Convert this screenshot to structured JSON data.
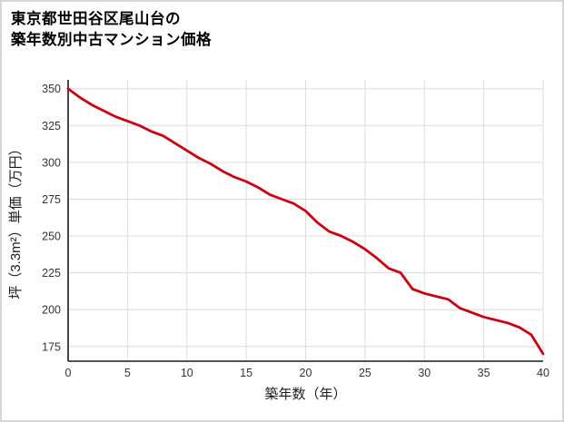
{
  "page": {
    "background": "#ffffff",
    "border_color": "#d6d6d6"
  },
  "title": {
    "line1": "東京都世田谷区尾山台の",
    "line2": "築年数別中古マンション価格"
  },
  "chart_data": {
    "type": "line",
    "title": "東京都世田谷区尾山台の築年数別中古マンション価格",
    "xlabel": "築年数（年）",
    "ylabel": "坪（3.3m²）単価（万円）",
    "x": [
      0,
      1,
      2,
      3,
      4,
      5,
      6,
      7,
      8,
      9,
      10,
      11,
      12,
      13,
      14,
      15,
      16,
      17,
      18,
      19,
      20,
      21,
      22,
      23,
      24,
      25,
      26,
      27,
      28,
      29,
      30,
      31,
      32,
      33,
      34,
      35,
      36,
      37,
      38,
      39,
      40
    ],
    "y": [
      350,
      344,
      339,
      335,
      331,
      328,
      325,
      321,
      318,
      313,
      308,
      303,
      299,
      294,
      290,
      287,
      283,
      278,
      275,
      272,
      267,
      259,
      253,
      250,
      246,
      241,
      235,
      228,
      225,
      214,
      211,
      209,
      207,
      201,
      198,
      195,
      193,
      191,
      188,
      183,
      170
    ],
    "xlim": [
      0,
      40
    ],
    "ylim": [
      165,
      356
    ],
    "xticks": [
      0,
      5,
      10,
      15,
      20,
      25,
      30,
      35,
      40
    ],
    "yticks": [
      175,
      200,
      225,
      250,
      275,
      300,
      325,
      350
    ],
    "grid": true,
    "legend": false,
    "line_color": "#cc0011",
    "grid_color": "#dcdcdc",
    "axis_color": "#1a1a1a",
    "tick_label_color": "#333333",
    "axis_title_color": "#1a1a1a"
  }
}
